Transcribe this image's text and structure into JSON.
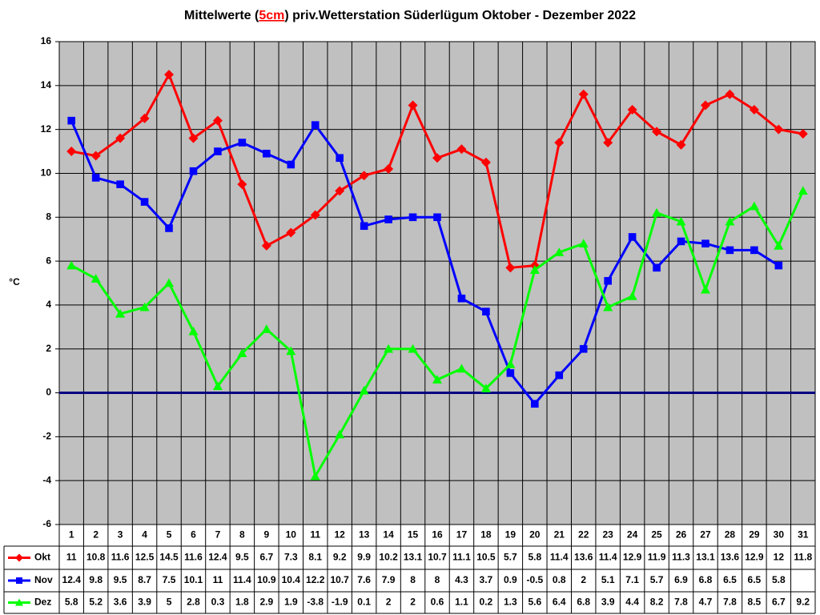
{
  "chart_data": {
    "type": "line",
    "title": [
      "Mittelwerte (",
      "5cm",
      ") priv.Wetterstation Süderlügum Oktober - Dezember 2022"
    ],
    "title_highlight_color": "#ff0000",
    "ylabel": "°C",
    "categories": [
      "1",
      "2",
      "3",
      "4",
      "5",
      "6",
      "7",
      "8",
      "9",
      "10",
      "11",
      "12",
      "13",
      "14",
      "15",
      "16",
      "17",
      "18",
      "19",
      "20",
      "21",
      "22",
      "23",
      "24",
      "25",
      "26",
      "27",
      "28",
      "29",
      "30",
      "31"
    ],
    "series": [
      {
        "name": "Okt",
        "color": "#ff0000",
        "marker": "diamond",
        "values": [
          11,
          10.8,
          11.6,
          12.5,
          14.5,
          11.6,
          12.4,
          9.5,
          6.7,
          7.3,
          8.1,
          9.2,
          9.9,
          10.2,
          13.1,
          10.7,
          11.1,
          10.5,
          5.7,
          5.8,
          11.4,
          13.6,
          11.4,
          12.9,
          11.9,
          11.3,
          13.1,
          13.6,
          12.9,
          12,
          11.8
        ]
      },
      {
        "name": "Nov",
        "color": "#0000ff",
        "marker": "square",
        "values": [
          12.4,
          9.8,
          9.5,
          8.7,
          7.5,
          10.1,
          11,
          11.4,
          10.9,
          10.4,
          12.2,
          10.7,
          7.6,
          7.9,
          8,
          8,
          4.3,
          3.7,
          0.9,
          -0.5,
          0.8,
          2,
          5.1,
          7.1,
          5.7,
          6.9,
          6.8,
          6.5,
          6.5,
          5.8,
          null
        ]
      },
      {
        "name": "Dez",
        "color": "#00ff00",
        "marker": "triangle",
        "values": [
          5.8,
          5.2,
          3.6,
          3.9,
          5,
          2.8,
          0.3,
          1.8,
          2.9,
          1.9,
          -3.8,
          -1.9,
          0.1,
          2,
          2,
          0.6,
          1.1,
          0.2,
          1.3,
          5.6,
          6.4,
          6.8,
          3.9,
          4.4,
          8.2,
          7.8,
          4.7,
          7.8,
          8.5,
          6.7,
          9.2
        ]
      }
    ],
    "ylim": [
      -6,
      16
    ],
    "yticks": [
      -6,
      -4,
      -2,
      0,
      2,
      4,
      6,
      8,
      10,
      12,
      14,
      16
    ],
    "grid": true,
    "plot_background": "#c0c0c0",
    "zero_line_color": "#000080",
    "data_table": true
  }
}
